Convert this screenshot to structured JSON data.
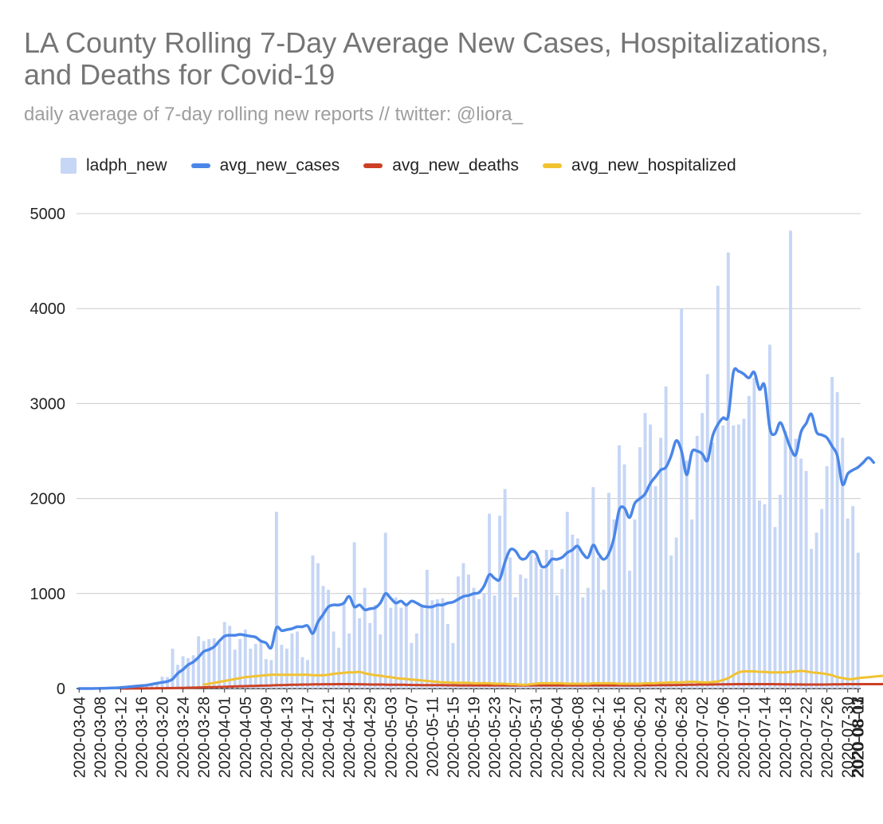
{
  "chart_data": {
    "type": "bar+line",
    "title": "LA County Rolling 7-Day Average New Cases, Hospitalizations, and Deaths for Covid-19",
    "subtitle": "daily average of 7-day rolling new reports // twitter: @liora_",
    "ylim": [
      0,
      5000
    ],
    "y_ticks": [
      0,
      1000,
      2000,
      3000,
      4000,
      5000
    ],
    "x_start": "2020-03-04",
    "x_end": "2020-08-11",
    "x_tick_labels": [
      "2020-03-04",
      "2020-03-08",
      "2020-03-12",
      "2020-03-16",
      "2020-03-20",
      "2020-03-24",
      "2020-03-28",
      "2020-04-01",
      "2020-04-05",
      "2020-04-09",
      "2020-04-13",
      "2020-04-17",
      "2020-04-21",
      "2020-04-25",
      "2020-04-29",
      "2020-05-03",
      "2020-05-07",
      "2020-05-11",
      "2020-05-15",
      "2020-05-19",
      "2020-05-23",
      "2020-05-27",
      "2020-05-31",
      "2020-06-04",
      "2020-06-08",
      "2020-06-12",
      "2020-06-16",
      "2020-06-20",
      "2020-06-24",
      "2020-06-28",
      "2020-07-02",
      "2020-07-06",
      "2020-07-10",
      "2020-07-14",
      "2020-07-18",
      "2020-07-22",
      "2020-07-26",
      "2020-07-30",
      "2020-08-03",
      "2020-08-07",
      "2020-08-11"
    ],
    "grid": true,
    "legend_position": "top",
    "series": [
      {
        "name": "ladph_new",
        "type": "bar",
        "color": "#c6d6f5",
        "values": [
          0,
          1,
          3,
          5,
          2,
          8,
          7,
          10,
          15,
          20,
          25,
          30,
          35,
          45,
          55,
          60,
          125,
          120,
          420,
          250,
          340,
          320,
          350,
          550,
          500,
          520,
          530,
          480,
          700,
          660,
          410,
          520,
          620,
          420,
          470,
          500,
          310,
          300,
          1860,
          460,
          420,
          580,
          600,
          330,
          300,
          1400,
          1320,
          1080,
          1040,
          600,
          430,
          920,
          580,
          1540,
          740,
          1060,
          690,
          880,
          570,
          1640,
          850,
          960,
          850,
          900,
          480,
          580,
          880,
          1250,
          930,
          940,
          950,
          680,
          480,
          1180,
          1320,
          1200,
          1060,
          940,
          1000,
          1840,
          980,
          1820,
          2100,
          1380,
          960,
          1200,
          1160,
          1440,
          1380,
          1260,
          1460,
          1460,
          980,
          1260,
          1860,
          1620,
          1580,
          960,
          1060,
          2120,
          1380,
          1040,
          2060,
          1780,
          2560,
          2360,
          1240,
          1780,
          2540,
          2900,
          2780,
          2130,
          2640,
          3180,
          1400,
          1590,
          4000,
          2400,
          1780,
          2660,
          2900,
          3310,
          2590,
          4240,
          2770,
          4590,
          2770,
          2780,
          2840,
          3080,
          3270,
          1980,
          1940,
          3620,
          1700,
          2040,
          2710,
          4820,
          2630,
          2420,
          2290,
          1470,
          1640,
          1890,
          2340,
          3280,
          3120,
          2640,
          1790,
          1920,
          1430
        ]
      },
      {
        "name": "avg_new_cases",
        "type": "line",
        "color": "#4a86e8",
        "values": [
          0,
          0,
          0,
          1,
          2,
          3,
          5,
          7,
          10,
          15,
          20,
          25,
          30,
          35,
          45,
          55,
          65,
          75,
          100,
          160,
          200,
          250,
          280,
          330,
          390,
          410,
          440,
          500,
          550,
          560,
          560,
          570,
          560,
          550,
          540,
          500,
          480,
          430,
          640,
          610,
          620,
          630,
          650,
          650,
          660,
          580,
          700,
          780,
          860,
          880,
          880,
          900,
          970,
          860,
          880,
          830,
          840,
          850,
          900,
          1000,
          950,
          900,
          920,
          880,
          920,
          900,
          870,
          860,
          860,
          880,
          880,
          900,
          910,
          940,
          970,
          980,
          1000,
          1010,
          1080,
          1200,
          1160,
          1150,
          1330,
          1460,
          1450,
          1370,
          1370,
          1440,
          1420,
          1290,
          1290,
          1360,
          1360,
          1380,
          1430,
          1460,
          1500,
          1420,
          1380,
          1510,
          1420,
          1360,
          1420,
          1590,
          1880,
          1900,
          1800,
          1950,
          2000,
          2050,
          2160,
          2230,
          2300,
          2330,
          2450,
          2610,
          2500,
          2250,
          2490,
          2500,
          2470,
          2400,
          2660,
          2780,
          2850,
          2870,
          3330,
          3340,
          3310,
          3270,
          3330,
          3150,
          3190,
          2740,
          2680,
          2800,
          2680,
          2530,
          2460,
          2700,
          2790,
          2890,
          2700,
          2670,
          2640,
          2550,
          2450,
          2150,
          2260,
          2300,
          2330,
          2380,
          2430,
          2380
        ]
      },
      {
        "name": "avg_new_hospitalized",
        "type": "line",
        "color": "#f1c232",
        "start_index": 24,
        "values": [
          40,
          50,
          60,
          70,
          80,
          90,
          100,
          110,
          120,
          125,
          130,
          135,
          140,
          145,
          145,
          145,
          145,
          145,
          145,
          145,
          145,
          140,
          140,
          140,
          145,
          155,
          160,
          165,
          170,
          170,
          175,
          160,
          150,
          140,
          135,
          125,
          120,
          110,
          105,
          100,
          95,
          90,
          85,
          80,
          75,
          70,
          65,
          65,
          60,
          60,
          60,
          60,
          55,
          55,
          55,
          55,
          50,
          50,
          50,
          45,
          45,
          40,
          40,
          45,
          50,
          55,
          55,
          55,
          55,
          55,
          50,
          50,
          50,
          50,
          50,
          55,
          55,
          55,
          55,
          55,
          50,
          50,
          50,
          50,
          50,
          55,
          55,
          55,
          60,
          60,
          65,
          65,
          65,
          70,
          70,
          70,
          65,
          65,
          70,
          75,
          90,
          110,
          140,
          170,
          180,
          180,
          180,
          175,
          175,
          170,
          170,
          170,
          170,
          175,
          180,
          185,
          180,
          170,
          165,
          160,
          150,
          140,
          120,
          110,
          100,
          100,
          110,
          115,
          120,
          125,
          130,
          135,
          140,
          140,
          135,
          130,
          125,
          120,
          120
        ]
      },
      {
        "name": "avg_new_deaths",
        "type": "line",
        "color": "#cc4125",
        "start_index": 8,
        "values": [
          0,
          0,
          1,
          1,
          1,
          2,
          2,
          3,
          3,
          4,
          5,
          6,
          7,
          8,
          9,
          10,
          12,
          14,
          15,
          17,
          18,
          20,
          22,
          24,
          25,
          27,
          28,
          30,
          32,
          33,
          35,
          36,
          38,
          40,
          40,
          42,
          42,
          44,
          44,
          45,
          45,
          45,
          46,
          46,
          46,
          45,
          45,
          44,
          43,
          42,
          42,
          41,
          40,
          40,
          40,
          39,
          38,
          37,
          36,
          36,
          35,
          35,
          35,
          34,
          34,
          33,
          33,
          33,
          33,
          33,
          33,
          33,
          33,
          33,
          33,
          33,
          33,
          33,
          33,
          33,
          33,
          33,
          33,
          33,
          33,
          33,
          33,
          33,
          33,
          33,
          33,
          33,
          33,
          33,
          33,
          33,
          33,
          33,
          33,
          33,
          33,
          34,
          34,
          35,
          35,
          36,
          36,
          37,
          38,
          39,
          40,
          41,
          42,
          42,
          43,
          44,
          44,
          45,
          45,
          46,
          46,
          46,
          46,
          46,
          46,
          46,
          45,
          45,
          44,
          44,
          43,
          43,
          42,
          42,
          42,
          42,
          43,
          44,
          44,
          45,
          46,
          46,
          46,
          46,
          46,
          46,
          46,
          46,
          46,
          46,
          46,
          46,
          46,
          46,
          46
        ]
      }
    ]
  }
}
